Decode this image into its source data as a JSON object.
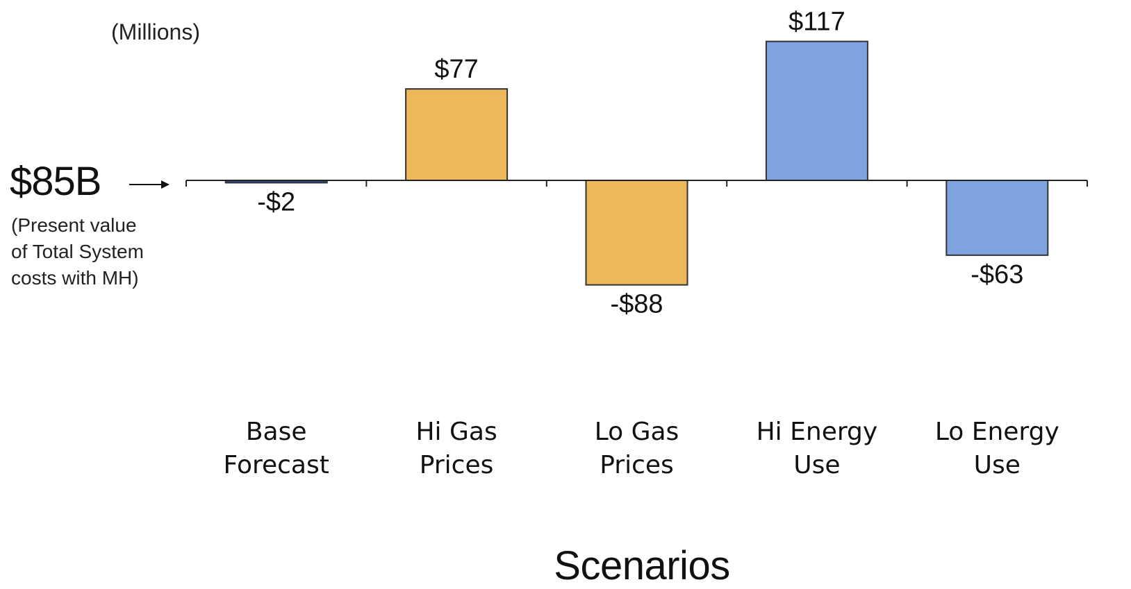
{
  "chart_data": {
    "type": "bar",
    "categories": [
      [
        "Base",
        "Forecast"
      ],
      [
        "Hi Gas",
        "Prices"
      ],
      [
        "Lo Gas",
        "Prices"
      ],
      [
        "Hi Energy",
        "Use"
      ],
      [
        "Lo Energy",
        "Use"
      ]
    ],
    "values": [
      -2,
      77,
      -88,
      117,
      -63
    ],
    "data_labels": [
      "-$2",
      "$77",
      "-$88",
      "$117",
      "-$63"
    ],
    "bar_colors": [
      "#2a4b8d",
      "#ecb85a",
      "#ecb85a",
      "#7ea3e0",
      "#7ea3e0"
    ],
    "bar_outline": "#333333",
    "unit_note": "(Millions)",
    "xlabel": "Scenarios",
    "ylabel": "",
    "baseline": {
      "value_label": "$85B",
      "description": [
        "(Present value",
        "of Total System",
        "costs with MH)"
      ]
    },
    "ylim": [
      -120,
      125
    ],
    "grid": false,
    "legend": "none"
  }
}
